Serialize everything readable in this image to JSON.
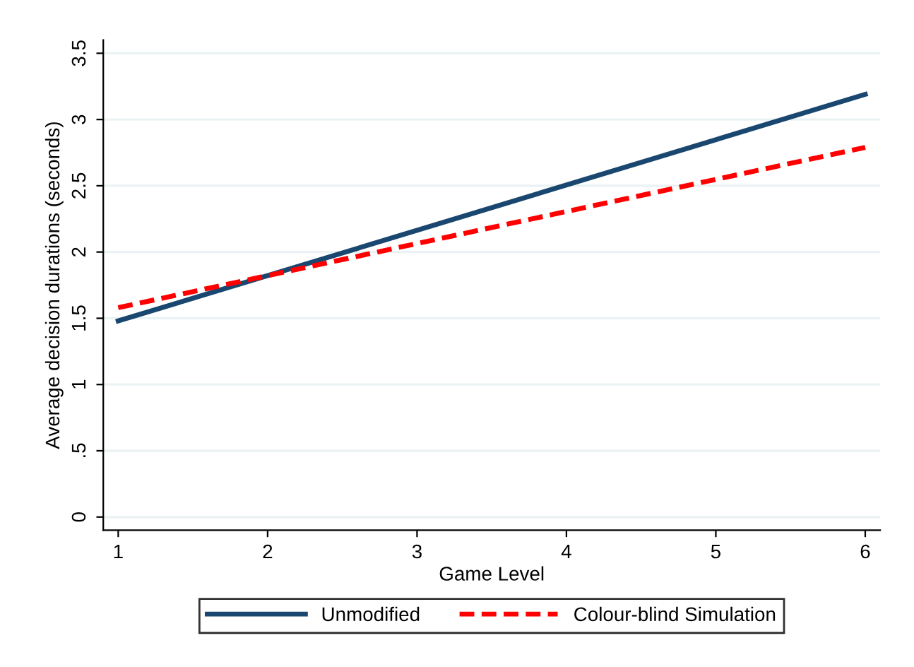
{
  "chart_data": {
    "type": "line",
    "xlabel": "Game Level",
    "ylabel": "Average decision durations (seconds)",
    "xlim": [
      0.9,
      6.1
    ],
    "xticks": [
      1,
      2,
      3,
      4,
      5,
      6
    ],
    "ylim": [
      -0.1,
      3.6
    ],
    "yticks": [
      0,
      {
        "value": 0.5,
        "label": ".5"
      },
      1,
      1.5,
      2,
      2.5,
      3,
      3.5
    ],
    "x": [
      1,
      6
    ],
    "grid": "y",
    "legend": "bottom",
    "marker": "none",
    "series": [
      {
        "name": "Unmodified",
        "color": "#1a476f",
        "values": [
          1.48,
          3.19
        ],
        "line_style": "solid"
      },
      {
        "name": "Colour-blind Simulation",
        "color": "#ff0000",
        "values": [
          1.58,
          2.79
        ],
        "line_style": "dashed"
      }
    ]
  }
}
